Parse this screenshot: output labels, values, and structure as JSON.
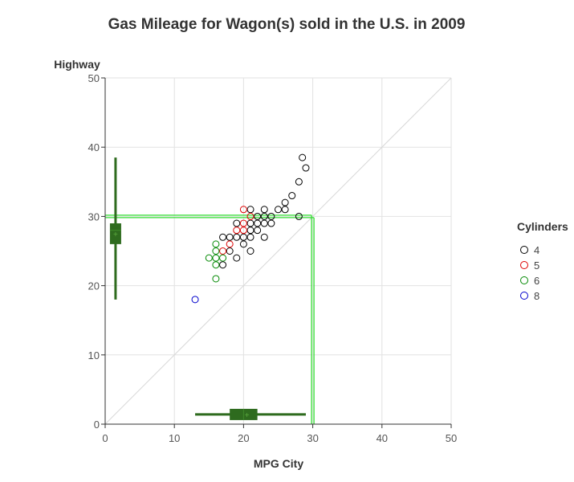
{
  "chart_data": {
    "type": "scatter",
    "title": "Gas Mileage for Wagon(s) sold in the U.S. in 2009",
    "xlabel": "MPG City",
    "ylabel": "Highway",
    "xlim": [
      0,
      50
    ],
    "ylim": [
      0,
      50
    ],
    "x_ticks": [
      0,
      10,
      20,
      30,
      40,
      50
    ],
    "y_ticks": [
      0,
      10,
      20,
      30,
      40,
      50
    ],
    "grid": true,
    "legend": {
      "title": "Cylinders",
      "position": "right"
    },
    "reference_line": {
      "type": "diagonal",
      "from": [
        0,
        0
      ],
      "to": [
        50,
        50
      ],
      "color": "#d8d8d8"
    },
    "average_lines": {
      "city": 30,
      "highway": 30,
      "color": "#33dd33"
    },
    "series": [
      {
        "name": "4",
        "color": "#000000",
        "points": [
          [
            28.5,
            38.5
          ],
          [
            29,
            37
          ],
          [
            28,
            35
          ],
          [
            27,
            33
          ],
          [
            26,
            32
          ],
          [
            26,
            31
          ],
          [
            25,
            31
          ],
          [
            21,
            31
          ],
          [
            23,
            31
          ],
          [
            22,
            30
          ],
          [
            23,
            30
          ],
          [
            24,
            30
          ],
          [
            28,
            30
          ],
          [
            19,
            29
          ],
          [
            21,
            29
          ],
          [
            22,
            29
          ],
          [
            23,
            29
          ],
          [
            24,
            29
          ],
          [
            21,
            28
          ],
          [
            22,
            28
          ],
          [
            18,
            27
          ],
          [
            19,
            27
          ],
          [
            20,
            27
          ],
          [
            21,
            27
          ],
          [
            23,
            27
          ],
          [
            17,
            27
          ],
          [
            20,
            26
          ],
          [
            18,
            25
          ],
          [
            21,
            25
          ],
          [
            19,
            24
          ],
          [
            17,
            23
          ]
        ]
      },
      {
        "name": "5",
        "color": "#dd0000",
        "points": [
          [
            20,
            31
          ],
          [
            20,
            29
          ],
          [
            19,
            28
          ],
          [
            20,
            28
          ],
          [
            18,
            26
          ],
          [
            17,
            25
          ],
          [
            21,
            30
          ]
        ]
      },
      {
        "name": "6",
        "color": "#008800",
        "points": [
          [
            16,
            26
          ],
          [
            16,
            25
          ],
          [
            15,
            24
          ],
          [
            16,
            24
          ],
          [
            17,
            24
          ],
          [
            16,
            23
          ],
          [
            16,
            21
          ]
        ]
      },
      {
        "name": "8",
        "color": "#0000cc",
        "points": [
          [
            13,
            18
          ]
        ]
      }
    ],
    "boxplots": {
      "color": "#2e6b1e",
      "city": {
        "min": 13,
        "q1": 18,
        "median": 20,
        "q3": 22,
        "max": 29,
        "mean": 20.5
      },
      "highway": {
        "min": 18,
        "q1": 26,
        "median": 28,
        "q3": 29,
        "max": 38.5,
        "mean": 27.5
      }
    }
  }
}
